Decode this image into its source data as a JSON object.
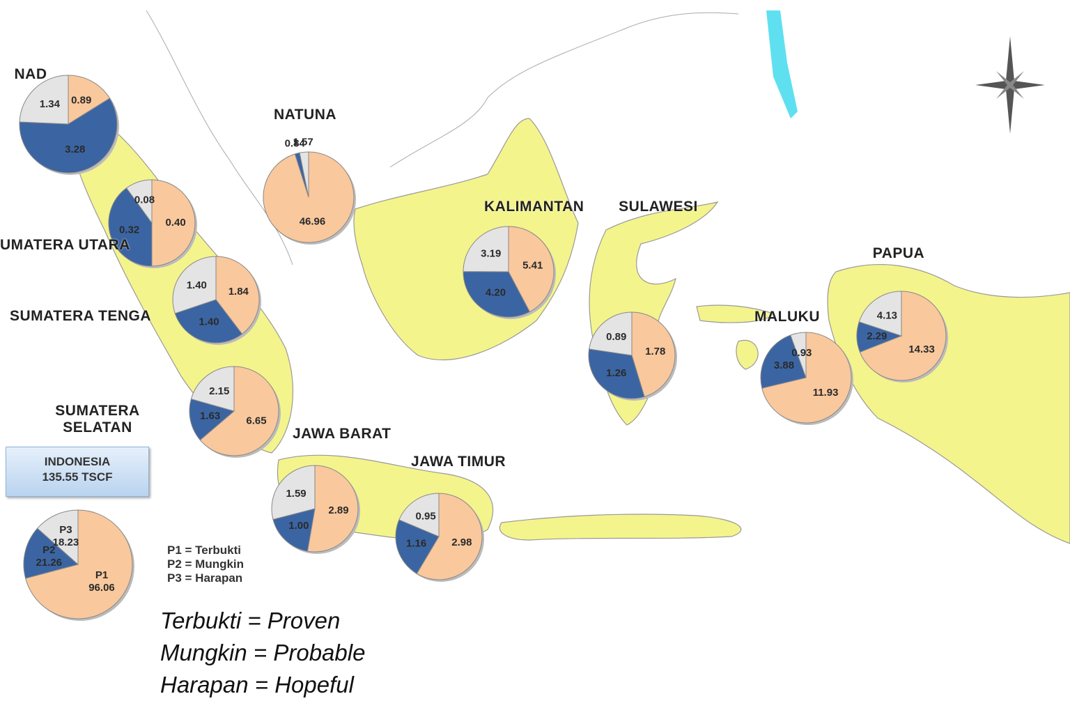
{
  "chart_data": [
    {
      "type": "pie",
      "title": "NAD",
      "values": [
        0.89,
        3.28,
        1.34
      ],
      "value_labels": [
        "0.89",
        "3.28",
        "1.34"
      ],
      "colors": [
        "#f9c89d",
        "#3b65a2",
        "#e4e4e4"
      ]
    },
    {
      "type": "pie",
      "title": "UMATERA UTARA",
      "values": [
        0.4,
        0.32,
        0.08
      ],
      "value_labels": [
        "0.40",
        "0.32",
        "0.08"
      ],
      "colors": [
        "#f9c89d",
        "#3b65a2",
        "#e4e4e4"
      ]
    },
    {
      "type": "pie",
      "title": "SUMATERA TENGA",
      "values": [
        1.84,
        1.4,
        1.4
      ],
      "value_labels": [
        "1.84",
        "1.40",
        "1.40"
      ],
      "colors": [
        "#f9c89d",
        "#3b65a2",
        "#e4e4e4"
      ]
    },
    {
      "type": "pie",
      "title": "SUMATERA SELATAN",
      "values": [
        6.65,
        1.63,
        2.15
      ],
      "value_labels": [
        "6.65",
        "1.63",
        "2.15"
      ],
      "colors": [
        "#f9c89d",
        "#3b65a2",
        "#e4e4e4"
      ]
    },
    {
      "type": "pie",
      "title": "NATUNA",
      "values": [
        46.96,
        0.84,
        1.57
      ],
      "value_labels": [
        "46.96",
        "0.84",
        "1.57"
      ],
      "colors": [
        "#f9c89d",
        "#3b65a2",
        "#e4e4e4"
      ]
    },
    {
      "type": "pie",
      "title": "JAWA BARAT",
      "values": [
        2.89,
        1.0,
        1.59
      ],
      "value_labels": [
        "2.89",
        "1.00",
        "1.59"
      ],
      "colors": [
        "#f9c89d",
        "#3b65a2",
        "#e4e4e4"
      ]
    },
    {
      "type": "pie",
      "title": "JAWA TIMUR",
      "values": [
        2.98,
        1.16,
        0.95
      ],
      "value_labels": [
        "2.98",
        "1.16",
        "0.95"
      ],
      "colors": [
        "#f9c89d",
        "#3b65a2",
        "#e4e4e4"
      ]
    },
    {
      "type": "pie",
      "title": "KALIMANTAN",
      "values": [
        5.41,
        4.2,
        3.19
      ],
      "value_labels": [
        "5.41",
        "4.20",
        "3.19"
      ],
      "colors": [
        "#f9c89d",
        "#3b65a2",
        "#e4e4e4"
      ]
    },
    {
      "type": "pie",
      "title": "SULAWESI",
      "values": [
        1.78,
        1.26,
        0.89
      ],
      "value_labels": [
        "1.78",
        "1.26",
        "0.89"
      ],
      "colors": [
        "#f9c89d",
        "#3b65a2",
        "#e4e4e4"
      ]
    },
    {
      "type": "pie",
      "title": "MALUKU",
      "values": [
        11.93,
        3.88,
        0.93
      ],
      "value_labels": [
        "11.93",
        "3.88",
        "0.93"
      ],
      "colors": [
        "#f9c89d",
        "#3b65a2",
        "#e4e4e4"
      ]
    },
    {
      "type": "pie",
      "title": "PAPUA",
      "values": [
        14.33,
        2.29,
        4.13
      ],
      "value_labels": [
        "14.33",
        "2.29",
        "4.13"
      ],
      "colors": [
        "#f9c89d",
        "#3b65a2",
        "#e4e4e4"
      ]
    },
    {
      "type": "pie",
      "categories": [
        "P1",
        "P2",
        "P3"
      ],
      "values": [
        96.06,
        21.26,
        18.23
      ],
      "value_labels": [
        "96.06",
        "21.26",
        "18.23"
      ],
      "colors": [
        "#f9c89d",
        "#3b65a2",
        "#e4e4e4"
      ]
    }
  ],
  "summary": [
    "INDONESIA",
    "135.55 TSCF"
  ],
  "legend": [
    "P1 = Terbukti",
    "P2 = Mungkin",
    "P3 = Harapan"
  ],
  "translations": [
    "Terbukti = Proven",
    "Mungkin = Probable",
    "Harapan = Hopeful"
  ]
}
